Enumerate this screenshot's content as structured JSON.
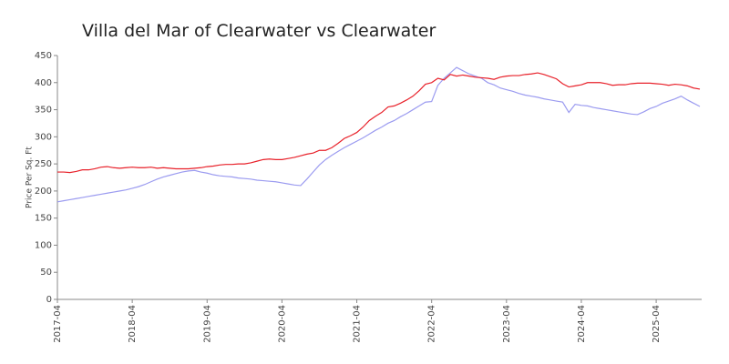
{
  "chart_data": {
    "type": "line",
    "title": "Villa del Mar of Clearwater vs Clearwater",
    "y_label": "Price Per Sq. Ft",
    "categories": [
      "2017-04",
      null,
      null,
      null,
      null,
      null,
      null,
      null,
      null,
      null,
      null,
      null,
      "2018-04",
      null,
      null,
      null,
      null,
      null,
      null,
      null,
      null,
      null,
      null,
      null,
      "2019-04",
      null,
      null,
      null,
      null,
      null,
      null,
      null,
      null,
      null,
      null,
      null,
      "2020-04",
      null,
      null,
      null,
      null,
      null,
      null,
      null,
      null,
      null,
      null,
      null,
      "2021-04",
      null,
      null,
      null,
      null,
      null,
      null,
      null,
      null,
      null,
      null,
      null,
      "2022-04",
      null,
      null,
      null,
      null,
      null,
      null,
      null,
      null,
      null,
      null,
      null,
      "2023-04",
      null,
      null,
      null,
      null,
      null,
      null,
      null,
      null,
      null,
      null,
      null,
      "2024-04",
      null,
      null,
      null,
      null,
      null,
      null,
      null,
      null,
      null,
      null,
      null,
      "2025-04",
      null,
      null,
      null,
      null,
      null,
      null,
      null
    ],
    "series": [
      {
        "color": "#e8212a",
        "values": [
          235,
          235,
          234,
          236,
          239,
          239,
          241,
          244,
          245,
          243,
          242,
          243,
          244,
          243,
          243,
          244,
          242,
          243,
          242,
          241,
          241,
          241,
          242,
          243,
          245,
          246,
          248,
          249,
          249,
          250,
          250,
          252,
          255,
          258,
          259,
          258,
          258,
          260,
          262,
          265,
          268,
          270,
          275,
          275,
          280,
          288,
          297,
          302,
          308,
          318,
          330,
          338,
          345,
          355,
          357,
          362,
          368,
          375,
          385,
          397,
          400,
          408,
          405,
          415,
          412,
          414,
          412,
          410,
          409,
          408,
          406,
          410,
          412,
          413,
          413,
          415,
          416,
          418,
          415,
          411,
          407,
          398,
          392,
          394,
          396,
          400,
          400,
          400,
          398,
          395,
          396,
          396,
          398,
          399,
          399,
          399,
          398,
          397,
          395,
          397,
          396,
          394,
          390,
          388
        ]
      },
      {
        "color": "#9b9bf0",
        "values": [
          180,
          182,
          184,
          186,
          188,
          190,
          192,
          194,
          196,
          198,
          200,
          202,
          205,
          208,
          212,
          217,
          222,
          226,
          229,
          232,
          235,
          237,
          238,
          235,
          233,
          230,
          228,
          227,
          226,
          224,
          223,
          222,
          220,
          219,
          218,
          217,
          215,
          213,
          211,
          210,
          222,
          235,
          248,
          258,
          266,
          273,
          280,
          286,
          292,
          298,
          305,
          312,
          318,
          325,
          330,
          337,
          343,
          350,
          357,
          364,
          365,
          395,
          408,
          418,
          428,
          422,
          416,
          412,
          408,
          400,
          396,
          390,
          387,
          384,
          380,
          377,
          375,
          373,
          370,
          368,
          366,
          364,
          345,
          360,
          358,
          357,
          354,
          352,
          350,
          348,
          346,
          344,
          342,
          341,
          346,
          352,
          356,
          362,
          366,
          370,
          375,
          368,
          362,
          356
        ]
      }
    ],
    "ylim": [
      0,
      450
    ],
    "yticks": [
      0,
      50,
      100,
      150,
      200,
      250,
      300,
      350,
      400,
      450
    ]
  }
}
